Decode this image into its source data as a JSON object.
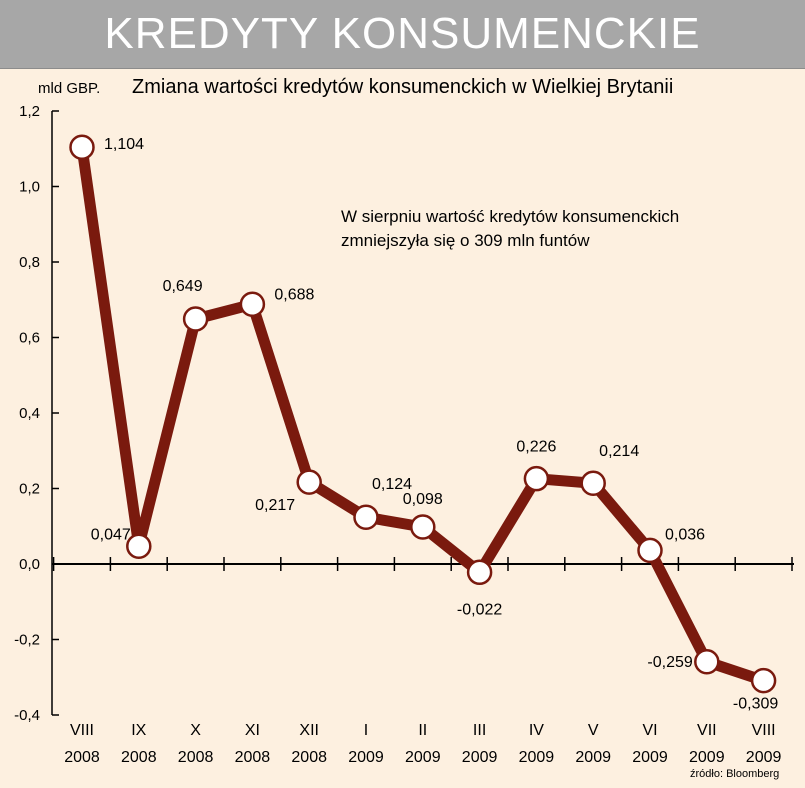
{
  "banner": {
    "title": "KREDYTY KONSUMENCKIE"
  },
  "source": "źródło: Bloomberg",
  "chart_data": {
    "type": "line",
    "title": "Zmiana wartości kredytów konsumenckich w Wielkiej Brytanii",
    "ylabel": "mld GBP.",
    "annotation": [
      "W sierpniu wartość kredytów konsumenckich",
      "zmniejszyła się o 309 mln funtów"
    ],
    "ylim": [
      -0.4,
      1.2
    ],
    "yticks": [
      "1,2",
      "1,0",
      "0,8",
      "0,6",
      "0,4",
      "0,2",
      "0,0",
      "-0,2",
      "-0,4"
    ],
    "ytick_values": [
      1.2,
      1.0,
      0.8,
      0.6,
      0.4,
      0.2,
      0.0,
      -0.2,
      -0.4
    ],
    "categories": [
      {
        "month": "VIII",
        "year": "2008"
      },
      {
        "month": "IX",
        "year": "2008"
      },
      {
        "month": "X",
        "year": "2008"
      },
      {
        "month": "XI",
        "year": "2008"
      },
      {
        "month": "XII",
        "year": "2008"
      },
      {
        "month": "I",
        "year": "2009"
      },
      {
        "month": "II",
        "year": "2009"
      },
      {
        "month": "III",
        "year": "2009"
      },
      {
        "month": "IV",
        "year": "2009"
      },
      {
        "month": "V",
        "year": "2009"
      },
      {
        "month": "VI",
        "year": "2009"
      },
      {
        "month": "VII",
        "year": "2009"
      },
      {
        "month": "VIII",
        "year": "2009"
      }
    ],
    "values": [
      1.104,
      0.047,
      0.649,
      0.688,
      0.217,
      0.124,
      0.098,
      -0.022,
      0.226,
      0.214,
      0.036,
      -0.259,
      -0.309
    ],
    "labels": [
      "1,104",
      "0,047",
      "0,649",
      "0,688",
      "0,217",
      "0,124",
      "0,098",
      "-0,022",
      "0,226",
      "0,214",
      "0,036",
      "-0,259",
      "-0,309"
    ],
    "line_color": "#7a1a0e",
    "marker_fill": "#ffffff",
    "grid": false
  }
}
